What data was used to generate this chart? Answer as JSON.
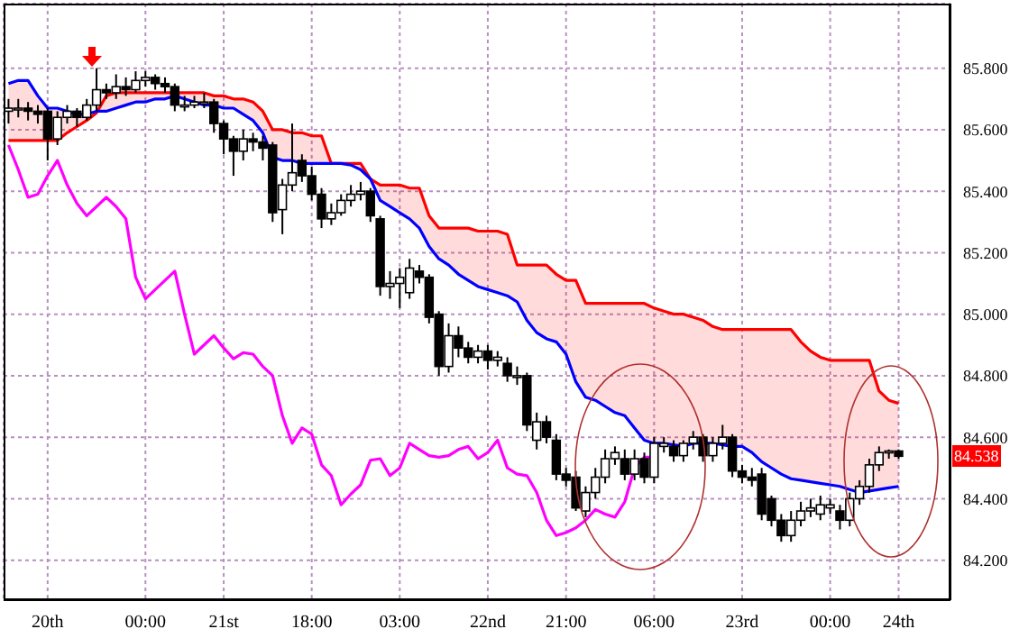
{
  "chart_data": {
    "type": "candlestick",
    "categories": [
      null,
      null,
      null,
      null,
      "20th",
      null,
      null,
      null,
      null,
      null,
      null,
      null,
      null,
      null,
      "00:00",
      null,
      null,
      null,
      null,
      null,
      null,
      null,
      "21st",
      null,
      null,
      null,
      null,
      null,
      null,
      null,
      null,
      "18:00",
      null,
      null,
      null,
      null,
      null,
      null,
      null,
      null,
      "03:00",
      null,
      null,
      null,
      null,
      null,
      null,
      null,
      null,
      "22nd",
      null,
      null,
      null,
      null,
      null,
      null,
      null,
      "21:00",
      null,
      null,
      null,
      null,
      null,
      null,
      null,
      null,
      "06:00",
      null,
      null,
      null,
      null,
      null,
      null,
      null,
      null,
      "23rd",
      null,
      null,
      null,
      null,
      null,
      null,
      null,
      null,
      "00:00",
      null,
      null,
      null,
      null,
      null,
      null,
      "24th"
    ],
    "ohlc": [
      [
        85.66,
        85.7,
        85.62,
        85.67
      ],
      [
        85.67,
        85.7,
        85.64,
        85.67
      ],
      [
        85.67,
        85.69,
        85.63,
        85.66
      ],
      [
        85.66,
        85.68,
        85.62,
        85.65
      ],
      [
        85.66,
        85.67,
        85.5,
        85.57
      ],
      [
        85.57,
        85.66,
        85.55,
        85.64
      ],
      [
        85.64,
        85.68,
        85.62,
        85.66
      ],
      [
        85.66,
        85.67,
        85.61,
        85.64
      ],
      [
        85.64,
        85.7,
        85.63,
        85.68
      ],
      [
        85.68,
        85.8,
        85.66,
        85.73
      ],
      [
        85.73,
        85.75,
        85.7,
        85.72
      ],
      [
        85.72,
        85.78,
        85.7,
        85.74
      ],
      [
        85.74,
        85.77,
        85.71,
        85.73
      ],
      [
        85.73,
        85.79,
        85.72,
        85.76
      ],
      [
        85.76,
        85.79,
        85.74,
        85.77
      ],
      [
        85.77,
        85.78,
        85.73,
        85.75
      ],
      [
        85.75,
        85.77,
        85.72,
        85.74
      ],
      [
        85.74,
        85.75,
        85.66,
        85.68
      ],
      [
        85.68,
        85.71,
        85.66,
        85.68
      ],
      [
        85.68,
        85.71,
        85.67,
        85.69
      ],
      [
        85.69,
        85.72,
        85.67,
        85.69
      ],
      [
        85.69,
        85.7,
        85.59,
        85.62
      ],
      [
        85.62,
        85.63,
        85.52,
        85.57
      ],
      [
        85.57,
        85.58,
        85.45,
        85.53
      ],
      [
        85.53,
        85.6,
        85.5,
        85.57
      ],
      [
        85.57,
        85.59,
        85.53,
        85.56
      ],
      [
        85.56,
        85.58,
        85.5,
        85.54
      ],
      [
        85.55,
        85.56,
        85.3,
        85.33
      ],
      [
        85.34,
        85.44,
        85.26,
        85.42
      ],
      [
        85.42,
        85.62,
        85.4,
        85.46
      ],
      [
        85.5,
        85.52,
        85.43,
        85.45
      ],
      [
        85.45,
        85.48,
        85.37,
        85.39
      ],
      [
        85.39,
        85.41,
        85.28,
        85.31
      ],
      [
        85.31,
        85.36,
        85.29,
        85.33
      ],
      [
        85.33,
        85.39,
        85.32,
        85.37
      ],
      [
        85.37,
        85.42,
        85.35,
        85.39
      ],
      [
        85.39,
        85.43,
        85.37,
        85.4
      ],
      [
        85.4,
        85.41,
        85.3,
        85.32
      ],
      [
        85.31,
        85.32,
        85.06,
        85.09
      ],
      [
        85.09,
        85.14,
        85.05,
        85.1
      ],
      [
        85.1,
        85.15,
        85.02,
        85.12
      ],
      [
        85.07,
        85.18,
        85.05,
        85.15
      ],
      [
        85.14,
        85.16,
        85.1,
        85.12
      ],
      [
        85.12,
        85.13,
        84.97,
        84.99
      ],
      [
        85.0,
        85.01,
        84.8,
        84.83
      ],
      [
        84.83,
        84.97,
        84.81,
        84.93
      ],
      [
        84.93,
        84.96,
        84.86,
        84.89
      ],
      [
        84.89,
        84.91,
        84.84,
        84.86
      ],
      [
        84.86,
        84.9,
        84.84,
        84.88
      ],
      [
        84.88,
        84.9,
        84.82,
        84.85
      ],
      [
        84.85,
        84.88,
        84.83,
        84.86
      ],
      [
        84.84,
        84.86,
        84.78,
        84.8
      ],
      [
        84.8,
        84.83,
        84.77,
        84.8
      ],
      [
        84.8,
        84.81,
        84.62,
        84.64
      ],
      [
        84.59,
        84.68,
        84.56,
        84.65
      ],
      [
        84.65,
        84.67,
        84.58,
        84.6
      ],
      [
        84.59,
        84.61,
        84.46,
        84.48
      ],
      [
        84.48,
        84.5,
        84.44,
        84.46
      ],
      [
        84.47,
        84.49,
        84.36,
        84.37
      ],
      [
        84.36,
        84.44,
        84.34,
        84.42
      ],
      [
        84.42,
        84.5,
        84.4,
        84.47
      ],
      [
        84.47,
        84.56,
        84.45,
        84.53
      ],
      [
        84.53,
        84.57,
        84.51,
        84.55
      ],
      [
        84.53,
        84.56,
        84.46,
        84.48
      ],
      [
        84.48,
        84.56,
        84.46,
        84.53
      ],
      [
        84.53,
        84.55,
        84.45,
        84.47
      ],
      [
        84.47,
        84.6,
        84.45,
        84.58
      ],
      [
        84.57,
        84.6,
        84.55,
        84.58
      ],
      [
        84.57,
        84.59,
        84.52,
        84.54
      ],
      [
        84.54,
        84.59,
        84.52,
        84.58
      ],
      [
        84.58,
        84.62,
        84.56,
        84.6
      ],
      [
        84.6,
        84.61,
        84.52,
        84.54
      ],
      [
        84.54,
        84.6,
        84.52,
        84.58
      ],
      [
        84.58,
        84.64,
        84.56,
        84.6
      ],
      [
        84.6,
        84.61,
        84.47,
        84.49
      ],
      [
        84.49,
        84.51,
        84.45,
        84.47
      ],
      [
        84.47,
        84.5,
        84.44,
        84.46
      ],
      [
        84.48,
        84.5,
        84.33,
        84.35
      ],
      [
        84.4,
        84.41,
        84.31,
        84.33
      ],
      [
        84.33,
        84.35,
        84.26,
        84.28
      ],
      [
        84.28,
        84.36,
        84.26,
        84.33
      ],
      [
        84.33,
        84.39,
        84.31,
        84.36
      ],
      [
        84.36,
        84.4,
        84.34,
        84.37
      ],
      [
        84.35,
        84.41,
        84.33,
        84.38
      ],
      [
        84.37,
        84.4,
        84.35,
        84.38
      ],
      [
        84.36,
        84.38,
        84.3,
        84.33
      ],
      [
        84.33,
        84.42,
        84.31,
        84.4
      ],
      [
        84.4,
        84.46,
        84.38,
        84.44
      ],
      [
        84.44,
        84.53,
        84.42,
        84.51
      ],
      [
        84.51,
        84.57,
        84.49,
        84.55
      ],
      [
        84.55,
        84.56,
        84.53,
        84.555
      ],
      [
        84.555,
        84.56,
        84.53,
        84.538
      ]
    ],
    "color": "#000000",
    "series": [
      {
        "type": "line",
        "color": "#ff0000",
        "values": [
          85.565,
          85.565,
          85.565,
          85.565,
          85.565,
          85.565,
          85.59,
          85.61,
          85.63,
          85.655,
          85.71,
          85.72,
          85.72,
          85.72,
          85.72,
          85.72,
          85.72,
          85.72,
          85.72,
          85.72,
          85.72,
          85.71,
          85.71,
          85.7,
          85.7,
          85.69,
          85.66,
          85.6,
          85.6,
          85.59,
          85.59,
          85.58,
          85.58,
          85.49,
          85.49,
          85.49,
          85.49,
          85.44,
          85.42,
          85.42,
          85.42,
          85.41,
          85.41,
          85.32,
          85.28,
          85.28,
          85.28,
          85.28,
          85.27,
          85.27,
          85.27,
          85.26,
          85.16,
          85.16,
          85.16,
          85.16,
          85.13,
          85.11,
          85.11,
          85.035,
          85.035,
          85.035,
          85.035,
          85.035,
          85.035,
          85.035,
          85.02,
          85.01,
          85.0,
          85.0,
          84.99,
          84.98,
          84.96,
          84.95,
          84.95,
          84.95,
          84.95,
          84.95,
          84.95,
          84.95,
          84.95,
          84.91,
          84.88,
          84.86,
          84.85,
          84.85,
          84.85,
          84.85,
          84.85,
          84.75,
          84.72,
          84.71
        ],
        "upper": [
          85.565,
          85.565,
          85.565,
          85.565,
          85.565,
          85.565,
          85.59,
          85.61,
          85.63,
          85.655,
          85.71,
          85.72,
          85.72,
          85.72,
          85.72,
          85.72,
          85.72,
          85.72,
          85.72,
          85.72,
          85.72,
          85.71,
          85.71,
          85.7,
          85.7,
          85.69,
          85.66,
          85.6,
          85.6,
          85.59,
          85.59,
          85.58,
          85.58,
          85.49,
          85.49,
          85.49,
          85.49,
          85.44,
          85.42,
          85.42,
          85.42,
          85.41,
          85.41,
          85.32,
          85.28,
          85.28,
          85.28,
          85.28,
          85.27,
          85.27,
          85.27,
          85.26,
          85.16,
          85.16,
          85.16,
          85.16,
          85.13,
          85.11,
          85.11,
          85.035,
          85.035,
          85.035,
          85.035,
          85.035,
          85.035,
          85.035,
          85.02,
          85.01,
          85.0,
          85.0,
          84.99,
          84.98,
          84.96,
          84.95,
          84.95,
          84.95,
          84.95,
          84.95,
          84.95,
          84.95,
          84.95,
          84.91,
          84.88,
          84.86,
          84.85,
          84.85,
          84.85,
          84.85,
          84.85,
          84.75,
          84.72,
          84.71
        ],
        "lower": [
          85.75,
          85.76,
          85.76,
          85.71,
          85.67,
          85.67,
          85.66,
          85.65,
          85.65,
          85.66,
          85.66,
          85.67,
          85.68,
          85.69,
          85.69,
          85.7,
          85.7,
          85.71,
          85.7,
          85.69,
          85.68,
          85.68,
          85.67,
          85.67,
          85.65,
          85.63,
          85.59,
          85.51,
          85.5,
          85.5,
          85.49,
          85.49,
          85.49,
          85.49,
          85.49,
          85.485,
          85.47,
          85.44,
          85.37,
          85.35,
          85.33,
          85.31,
          85.28,
          85.22,
          85.18,
          85.16,
          85.13,
          85.11,
          85.09,
          85.08,
          85.07,
          85.06,
          85.04,
          84.98,
          84.94,
          84.92,
          84.91,
          84.87,
          84.78,
          84.73,
          84.72,
          84.7,
          84.68,
          84.67,
          84.63,
          84.59,
          84.58,
          84.58,
          84.575,
          84.57,
          84.58,
          84.58,
          84.58,
          84.575,
          84.57,
          84.57,
          84.55,
          84.52,
          84.5,
          84.48,
          84.465,
          84.46,
          84.455,
          84.45,
          84.445,
          84.44,
          84.43,
          84.42,
          84.425,
          84.43,
          84.435,
          84.44
        ]
      },
      {
        "type": "line",
        "color": "#0000ff",
        "values": [
          85.75,
          85.76,
          85.76,
          85.71,
          85.67,
          85.67,
          85.66,
          85.65,
          85.65,
          85.66,
          85.66,
          85.67,
          85.68,
          85.69,
          85.69,
          85.7,
          85.7,
          85.71,
          85.7,
          85.69,
          85.68,
          85.68,
          85.67,
          85.67,
          85.65,
          85.63,
          85.59,
          85.51,
          85.5,
          85.5,
          85.49,
          85.49,
          85.49,
          85.49,
          85.49,
          85.485,
          85.47,
          85.44,
          85.37,
          85.35,
          85.33,
          85.31,
          85.28,
          85.22,
          85.18,
          85.16,
          85.13,
          85.11,
          85.09,
          85.08,
          85.07,
          85.06,
          85.04,
          84.98,
          84.94,
          84.92,
          84.91,
          84.87,
          84.78,
          84.73,
          84.72,
          84.7,
          84.68,
          84.67,
          84.63,
          84.59,
          84.58,
          84.58,
          84.575,
          84.57,
          84.58,
          84.58,
          84.58,
          84.575,
          84.57,
          84.57,
          84.55,
          84.52,
          84.5,
          84.48,
          84.465,
          84.46,
          84.455,
          84.45,
          84.445,
          84.44,
          84.43,
          84.42,
          84.425,
          84.43,
          84.435,
          84.44
        ]
      },
      {
        "type": "line",
        "color": "#ff00ff",
        "values": [
          85.55,
          85.47,
          85.38,
          85.39,
          85.45,
          85.5,
          85.42,
          85.36,
          85.32,
          85.35,
          85.38,
          85.35,
          85.31,
          85.12,
          85.05,
          85.08,
          85.11,
          85.14,
          85.0,
          84.87,
          84.9,
          84.93,
          84.89,
          84.855,
          84.875,
          84.87,
          84.83,
          84.8,
          84.67,
          84.58,
          84.63,
          84.61,
          84.51,
          84.475,
          84.38,
          84.415,
          84.445,
          84.525,
          84.53,
          84.475,
          84.5,
          84.58,
          84.56,
          84.54,
          84.535,
          84.54,
          84.56,
          84.57,
          84.53,
          84.55,
          84.59,
          84.5,
          84.48,
          84.475,
          84.42,
          84.33,
          84.28,
          84.29,
          84.305,
          84.33,
          84.365,
          84.35,
          84.34,
          84.39,
          84.5,
          84.535,
          84.535,
          null,
          null,
          null,
          null,
          null,
          null,
          null,
          null,
          null,
          null,
          null,
          null,
          null,
          null,
          null,
          null,
          null,
          null,
          null,
          null,
          null,
          null,
          null,
          null,
          null
        ]
      }
    ],
    "ylim": [
      84.07,
      86.01
    ],
    "yticks": [
      {
        "value": 84.2,
        "label": "84.200"
      },
      {
        "value": 84.4,
        "label": "84.400"
      },
      {
        "value": 84.6,
        "label": "84.600"
      },
      {
        "value": 84.8,
        "label": "84.800"
      },
      {
        "value": 85.0,
        "label": "85.000"
      },
      {
        "value": 85.2,
        "label": "85.200"
      },
      {
        "value": 85.4,
        "label": "85.400"
      },
      {
        "value": 85.6,
        "label": "85.600"
      },
      {
        "value": 85.8,
        "label": "85.800"
      }
    ],
    "grid": true,
    "annotations": [
      "84.538"
    ]
  }
}
